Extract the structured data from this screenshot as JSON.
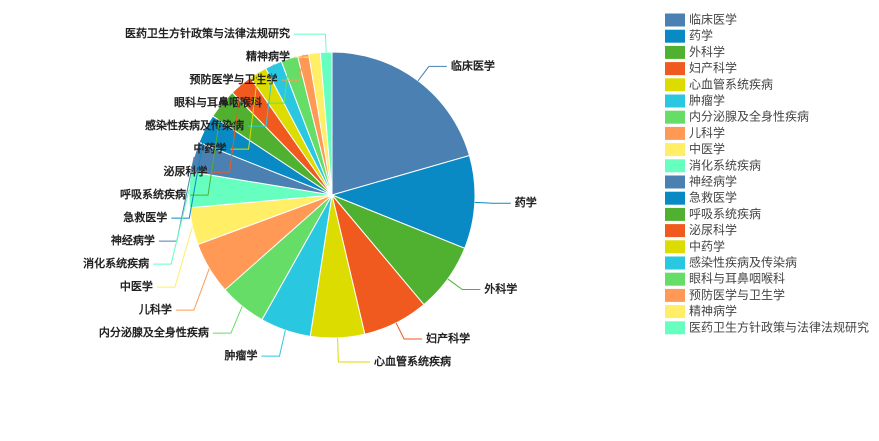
{
  "chart_data": {
    "type": "pie",
    "categories": [
      "临床医学",
      "药学",
      "外科学",
      "妇产科学",
      "心血管系统疾病",
      "肿瘤学",
      "内分泌腺及全身性疾病",
      "儿科学",
      "中医学",
      "消化系统疾病",
      "神经病学",
      "急救医学",
      "呼吸系统疾病",
      "泌尿科学",
      "中药学",
      "感染性疾病及传染病",
      "眼科与耳鼻咽喉科",
      "预防医学与卫生学",
      "精神病学",
      "医药卫生方针政策与法律法规研究"
    ],
    "values": [
      20.5,
      10.5,
      7.8,
      7.4,
      6.1,
      5.7,
      5.3,
      5.9,
      4.2,
      4.0,
      3.4,
      3.3,
      3.4,
      2.6,
      2.0,
      1.9,
      1.9,
      1.25,
      1.3,
      1.3
    ],
    "colors": [
      "#4a80b2",
      "#0a8ac4",
      "#50b030",
      "#f05a1e",
      "#dcdc00",
      "#2ac8e0",
      "#66dd66",
      "#ff9955",
      "#ffee66",
      "#66ffc0",
      "#4a80b2",
      "#0a8ac4",
      "#50b030",
      "#f05a1e",
      "#dcdc00",
      "#2ac8e0",
      "#66dd66",
      "#ff9955",
      "#ffee66",
      "#66ffc0"
    ],
    "legend": "right"
  }
}
